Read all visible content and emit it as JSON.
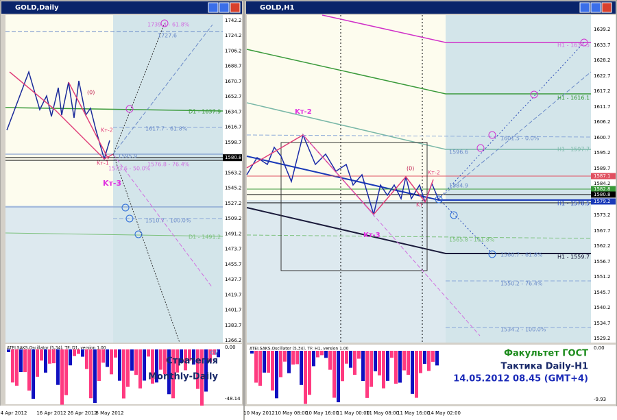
{
  "left": {
    "title": "GOLD,Daily",
    "price_labels": [
      "1742.2",
      "1724.2",
      "1706.2",
      "1688.7",
      "1670.7",
      "1652.7",
      "1634.7",
      "1616.7",
      "1598.7",
      "1580.8",
      "1563.2",
      "1545.2",
      "1527.2",
      "1509.2",
      "1491.2",
      "1473.7",
      "1455.7",
      "1437.7",
      "1419.7",
      "1401.7",
      "1383.7",
      "1366.2"
    ],
    "osc_labels": [
      "0.00",
      "-48.14"
    ],
    "dates": [
      "4 Apr 2012",
      "16 Apr 2012",
      "26 Apr 2012",
      "8 May 2012"
    ],
    "annotations": [
      "1739.4 - 61.8%",
      "1727.6",
      "(0)",
      "D1 - 1637.9",
      "Kт-2",
      "1617.7 - 61.8%",
      "1595.9",
      "Kт-1",
      "1576.8 - 76.4%",
      "1573.6 - 50.0%",
      "Kт-3",
      "1510.7 - 100.0%",
      "D1 - 1491.2"
    ],
    "indicator": "ATEI.SAKS.Oscillator (5,34). TF: D1, version 1.00",
    "corner": "CV",
    "caption": [
      "Стратегия",
      "Monthly-Daily"
    ]
  },
  "right": {
    "title": "GOLD,H1",
    "price_labels": [
      "1639.2",
      "1633.7",
      "1628.2",
      "1622.7",
      "1617.2",
      "1611.7",
      "1606.2",
      "1600.7",
      "1595.2",
      "1589.7",
      "1584.2",
      "1573.2",
      "1567.7",
      "1562.2",
      "1556.7",
      "1551.2",
      "1545.7",
      "1540.2",
      "1534.7",
      "1529.2"
    ],
    "highlight_labels": [
      "1587.1",
      "1582.8",
      "1580.8",
      "1579.2"
    ],
    "osc_labels": [
      "0.00",
      "-9.93"
    ],
    "dates": [
      "10 May 2012",
      "10 May 08:00",
      "10 May 16:00",
      "11 May 00:00",
      "11 May 08:00",
      "11 May 16:00",
      "14 May 02:00"
    ],
    "annotations": [
      "H1 - 1634.5",
      "H1 - 1616.1",
      "1601.5 - 0.0%",
      "H1 - 1597.7",
      "1596.6",
      "Kт-2",
      "(0)",
      "Kт-2",
      "1584.9",
      "Kт",
      "H1 - 1578.5",
      "Kт-3",
      "1565.8 - 161.8%",
      "1560.7 - 61.8%",
      "H1 - 1559.7",
      "1550.2 - 76.4%",
      "1534.2 - 100.0%"
    ],
    "indicator": "ATEI.SAKS.Oscillator (5,34). TF: H1, version 1.00",
    "caption": [
      "Факультет ГОСТ",
      "Тактика Daily-H1",
      "14.05.2012 08.45 (GMT+4)"
    ]
  }
}
